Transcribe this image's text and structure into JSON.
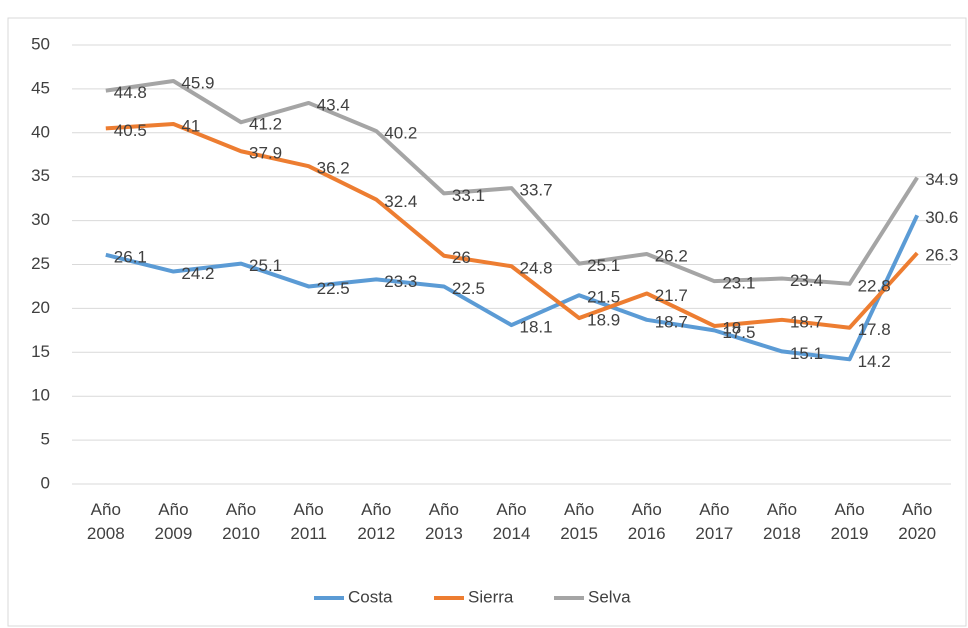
{
  "chart_data": {
    "type": "line",
    "categories": [
      "Año 2008",
      "Año 2009",
      "Año 2010",
      "Año 2011",
      "Año 2012",
      "Año 2013",
      "Año 2014",
      "Año 2015",
      "Año 2016",
      "Año 2017",
      "Año 2018",
      "Año 2019",
      "Año 2020"
    ],
    "series": [
      {
        "name": "Costa",
        "color": "#5b9bd5",
        "values": [
          26.1,
          24.2,
          25.1,
          22.5,
          23.3,
          22.5,
          18.1,
          21.5,
          18.7,
          17.5,
          15.1,
          14.2,
          30.6
        ]
      },
      {
        "name": "Sierra",
        "color": "#ed7d31",
        "values": [
          40.5,
          41,
          37.9,
          36.2,
          32.4,
          26,
          24.8,
          18.9,
          21.7,
          18,
          18.7,
          17.8,
          26.3
        ]
      },
      {
        "name": "Selva",
        "color": "#a5a5a5",
        "values": [
          44.8,
          45.9,
          41.2,
          43.4,
          40.2,
          33.1,
          33.7,
          25.1,
          26.2,
          23.1,
          23.4,
          22.8,
          34.9
        ]
      }
    ],
    "ylim": [
      0,
      50
    ],
    "yticks": [
      0,
      5,
      10,
      15,
      20,
      25,
      30,
      35,
      40,
      45,
      50
    ],
    "grid": true,
    "legend": "bottom"
  }
}
